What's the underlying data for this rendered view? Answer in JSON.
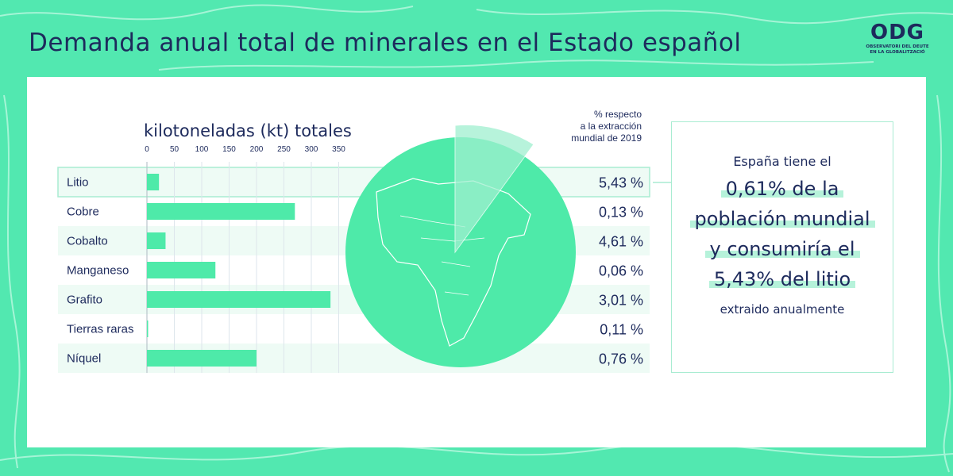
{
  "title": "Demanda anual total de minerales en el Estado español",
  "logo": {
    "mark": "ODG",
    "subtitle_line1": "OBSERVATORI DEL DEUTE",
    "subtitle_line2": "EN LA GLOBALITZACIÓ"
  },
  "colors": {
    "background": "#52e8b0",
    "bar": "#4eeaa9",
    "text": "#1d2a5c",
    "globe": "#4eeaa9",
    "row_band": "#eefbf5"
  },
  "pct_header": [
    "% respecto",
    "a la extracción",
    "mundial de 2019"
  ],
  "callout": {
    "top": "España tiene el",
    "highlight_lines": [
      "0,61% de la",
      "población mundial",
      "y consumiría el",
      "5,43% del litio"
    ],
    "bottom": "extraido anualmente"
  },
  "chart_data": {
    "type": "bar",
    "orientation": "horizontal",
    "xlabel": "kilotoneladas (kt) totales",
    "xlim": [
      0,
      350
    ],
    "xticks": [
      0,
      50,
      100,
      150,
      200,
      250,
      300,
      350
    ],
    "grid": true,
    "categories": [
      "Litio",
      "Cobre",
      "Cobalto",
      "Manganeso",
      "Grafito",
      "Tierras raras",
      "Níquel"
    ],
    "values": [
      22,
      270,
      34,
      125,
      335,
      2,
      200
    ],
    "pct_labels": [
      "5,43 %",
      "0,13 %",
      "4,61 %",
      "0,06 %",
      "3,01 %",
      "0,11 %",
      "0,76 %"
    ],
    "highlighted_category": "Litio"
  }
}
